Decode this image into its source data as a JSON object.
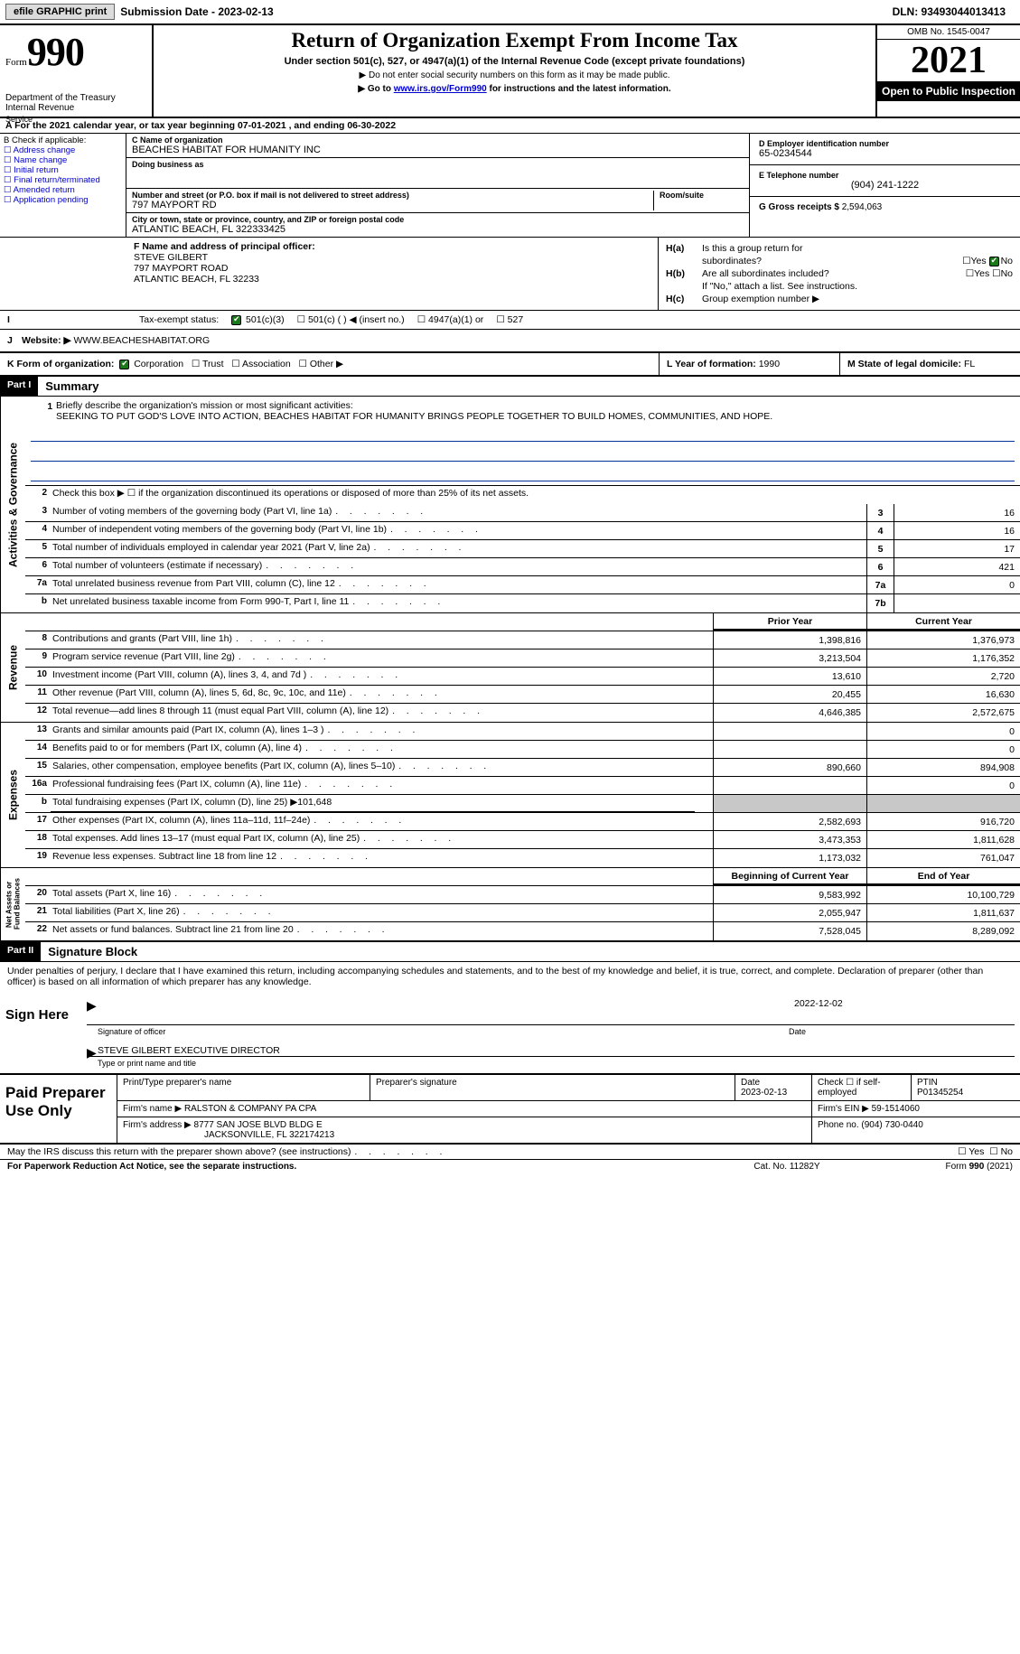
{
  "topbar": {
    "efile": "efile GRAPHIC print",
    "sub_label": "Submission Date - 2023-02-13",
    "dln": "DLN: 93493044013413"
  },
  "header": {
    "form_word": "Form",
    "form_num": "990",
    "dept": "Department of the Treasury\nInternal Revenue",
    "title": "Return of Organization Exempt From Income Tax",
    "sub": "Under section 501(c), 527, or 4947(a)(1) of the Internal Revenue Code (except private foundations)",
    "note1": "▶ Do not enter social security numbers on this form as it may be made public.",
    "note2_pre": "▶ Go to ",
    "note2_link": "www.irs.gov/Form990",
    "note2_post": " for instructions and the latest information.",
    "omb": "OMB No. 1545-0047",
    "year": "2021",
    "open": "Open to Public Inspection"
  },
  "period": {
    "service": "Service",
    "text_a": "A For the 2021 calendar year, or tax year beginning 07-01-2021",
    "text_b": ", and ending 06-30-2022"
  },
  "boxB": {
    "label": "B Check if applicable:",
    "items": [
      "Address change",
      "Name change",
      "Initial return",
      "Final return/terminated",
      "Amended return",
      "Application pending"
    ]
  },
  "boxC": {
    "name_lbl": "C Name of organization",
    "name": "BEACHES HABITAT FOR HUMANITY INC",
    "dba_lbl": "Doing business as",
    "dba": "",
    "street_lbl": "Number and street (or P.O. box if mail is not delivered to street address)",
    "street": "797 MAYPORT RD",
    "room_lbl": "Room/suite",
    "city_lbl": "City or town, state or province, country, and ZIP or foreign postal code",
    "city": "ATLANTIC BEACH, FL  322333425"
  },
  "boxD": {
    "lbl": "D Employer identification number",
    "val": "65-0234544"
  },
  "boxE": {
    "lbl": "E Telephone number",
    "val": "(904) 241-1222"
  },
  "boxG": {
    "lbl": "G Gross receipts $",
    "val": "2,594,063"
  },
  "boxF": {
    "lbl": "F Name and address of principal officer:",
    "name": "STEVE GILBERT",
    "addr1": "797 MAYPORT ROAD",
    "addr2": "ATLANTIC BEACH, FL  32233"
  },
  "boxH": {
    "ha": "Is this a group return for",
    "ha2": "subordinates?",
    "hb": "Are all subordinates included?",
    "hbnote": "If \"No,\" attach a list. See instructions.",
    "hc": "Group exemption number ▶"
  },
  "rowI": {
    "lbl": "Tax-exempt status:",
    "opt1": "501(c)(3)",
    "opt2": "501(c) (  ) ◀ (insert no.)",
    "opt3": "4947(a)(1) or",
    "opt4": "527"
  },
  "rowJ": {
    "lbl": "Website: ▶",
    "val": "WWW.BEACHESHABITAT.ORG"
  },
  "rowK": {
    "lbl": "K Form of organization:",
    "opts": [
      "Corporation",
      "Trust",
      "Association",
      "Other ▶"
    ],
    "l_lbl": "L Year of formation:",
    "l_val": "1990",
    "m_lbl": "M State of legal domicile:",
    "m_val": "FL"
  },
  "part1": {
    "hdr": "Part I",
    "title": "Summary",
    "mission_lbl": "Briefly describe the organization's mission or most significant activities:",
    "mission": "SEEKING TO PUT GOD'S LOVE INTO ACTION, BEACHES HABITAT FOR HUMANITY BRINGS PEOPLE TOGETHER TO BUILD HOMES, COMMUNITIES, AND HOPE.",
    "line2": "Check this box ▶ ☐ if the organization discontinued its operations or disposed of more than 25% of its net assets.",
    "rows_gov": [
      {
        "n": "3",
        "d": "Number of voting members of the governing body (Part VI, line 1a)",
        "b": "3",
        "v": "16"
      },
      {
        "n": "4",
        "d": "Number of independent voting members of the governing body (Part VI, line 1b)",
        "b": "4",
        "v": "16"
      },
      {
        "n": "5",
        "d": "Total number of individuals employed in calendar year 2021 (Part V, line 2a)",
        "b": "5",
        "v": "17"
      },
      {
        "n": "6",
        "d": "Total number of volunteers (estimate if necessary)",
        "b": "6",
        "v": "421"
      },
      {
        "n": "7a",
        "d": "Total unrelated business revenue from Part VIII, column (C), line 12",
        "b": "7a",
        "v": "0"
      },
      {
        "n": "b",
        "d": "Net unrelated business taxable income from Form 990-T, Part I, line 11",
        "b": "7b",
        "v": ""
      }
    ],
    "col_prior": "Prior Year",
    "col_curr": "Current Year",
    "rows_rev": [
      {
        "n": "8",
        "d": "Contributions and grants (Part VIII, line 1h)",
        "p": "1,398,816",
        "c": "1,376,973"
      },
      {
        "n": "9",
        "d": "Program service revenue (Part VIII, line 2g)",
        "p": "3,213,504",
        "c": "1,176,352"
      },
      {
        "n": "10",
        "d": "Investment income (Part VIII, column (A), lines 3, 4, and 7d )",
        "p": "13,610",
        "c": "2,720"
      },
      {
        "n": "11",
        "d": "Other revenue (Part VIII, column (A), lines 5, 6d, 8c, 9c, 10c, and 11e)",
        "p": "20,455",
        "c": "16,630"
      },
      {
        "n": "12",
        "d": "Total revenue—add lines 8 through 11 (must equal Part VIII, column (A), line 12)",
        "p": "4,646,385",
        "c": "2,572,675"
      }
    ],
    "rows_exp": [
      {
        "n": "13",
        "d": "Grants and similar amounts paid (Part IX, column (A), lines 1–3 )",
        "p": "",
        "c": "0"
      },
      {
        "n": "14",
        "d": "Benefits paid to or for members (Part IX, column (A), line 4)",
        "p": "",
        "c": "0"
      },
      {
        "n": "15",
        "d": "Salaries, other compensation, employee benefits (Part IX, column (A), lines 5–10)",
        "p": "890,660",
        "c": "894,908"
      },
      {
        "n": "16a",
        "d": "Professional fundraising fees (Part IX, column (A), line 11e)",
        "p": "",
        "c": "0"
      },
      {
        "n": "b",
        "d": "Total fundraising expenses (Part IX, column (D), line 25) ▶101,648",
        "p": "gray",
        "c": "gray"
      },
      {
        "n": "17",
        "d": "Other expenses (Part IX, column (A), lines 11a–11d, 11f–24e)",
        "p": "2,582,693",
        "c": "916,720"
      },
      {
        "n": "18",
        "d": "Total expenses. Add lines 13–17 (must equal Part IX, column (A), line 25)",
        "p": "3,473,353",
        "c": "1,811,628"
      },
      {
        "n": "19",
        "d": "Revenue less expenses. Subtract line 18 from line 12",
        "p": "1,173,032",
        "c": "761,047"
      }
    ],
    "col_begin": "Beginning of Current Year",
    "col_end": "End of Year",
    "rows_net": [
      {
        "n": "20",
        "d": "Total assets (Part X, line 16)",
        "p": "9,583,992",
        "c": "10,100,729"
      },
      {
        "n": "21",
        "d": "Total liabilities (Part X, line 26)",
        "p": "2,055,947",
        "c": "1,811,637"
      },
      {
        "n": "22",
        "d": "Net assets or fund balances. Subtract line 21 from line 20",
        "p": "7,528,045",
        "c": "8,289,092"
      }
    ],
    "vtab_gov": "Activities & Governance",
    "vtab_rev": "Revenue",
    "vtab_exp": "Expenses",
    "vtab_net": "Net Assets or\nFund Balances"
  },
  "part2": {
    "hdr": "Part II",
    "title": "Signature Block",
    "decl": "Under penalties of perjury, I declare that I have examined this return, including accompanying schedules and statements, and to the best of my knowledge and belief, it is true, correct, and complete. Declaration of preparer (other than officer) is based on all information of which preparer has any knowledge.",
    "sign_here": "Sign Here",
    "sig_officer": "Signature of officer",
    "sig_date": "2022-12-02",
    "sig_date_lbl": "Date",
    "sig_name": "STEVE GILBERT  EXECUTIVE DIRECTOR",
    "sig_name_lbl": "Type or print name and title",
    "paid": "Paid Preparer Use Only",
    "prep_name_lbl": "Print/Type preparer's name",
    "prep_sig_lbl": "Preparer's signature",
    "prep_date_lbl": "Date",
    "prep_date": "2023-02-13",
    "prep_check_lbl": "Check ☐ if self-employed",
    "ptin_lbl": "PTIN",
    "ptin": "P01345254",
    "firm_name_lbl": "Firm's name    ▶",
    "firm_name": "RALSTON & COMPANY PA CPA",
    "firm_ein_lbl": "Firm's EIN ▶",
    "firm_ein": "59-1514060",
    "firm_addr_lbl": "Firm's address ▶",
    "firm_addr": "8777 SAN JOSE BLVD BLDG E",
    "firm_city": "JACKSONVILLE, FL  322174213",
    "phone_lbl": "Phone no.",
    "phone": "(904) 730-0440"
  },
  "footer": {
    "discuss": "May the IRS discuss this return with the preparer shown above? (see instructions)",
    "pra": "For Paperwork Reduction Act Notice, see the separate instructions.",
    "cat": "Cat. No. 11282Y",
    "form": "Form 990 (2021)"
  }
}
